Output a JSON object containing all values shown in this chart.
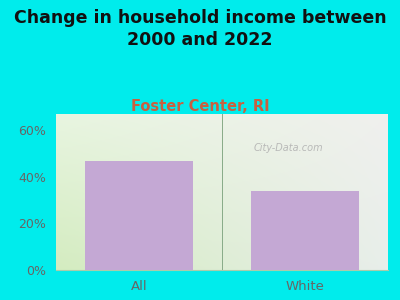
{
  "title": "Change in household income between\n2000 and 2022",
  "subtitle": "Foster Center, RI",
  "categories": [
    "All",
    "White"
  ],
  "values": [
    47,
    34
  ],
  "bar_color": "#c4a8d4",
  "title_fontsize": 12.5,
  "subtitle_fontsize": 10.5,
  "subtitle_color": "#c86040",
  "title_color": "#111111",
  "background_color": "#00ecec",
  "plot_bg_color_topleft": "#e8f5e0",
  "plot_bg_color_topright": "#f0f0ee",
  "plot_bg_color_bottomleft": "#d4ecc0",
  "plot_bg_color_bottomright": "#e8eeea",
  "ylabel_ticks": [
    0,
    20,
    40,
    60
  ],
  "ylim": [
    0,
    67
  ],
  "tick_label_color": "#666666",
  "watermark": "City-Data.com",
  "bar_width": 0.65
}
